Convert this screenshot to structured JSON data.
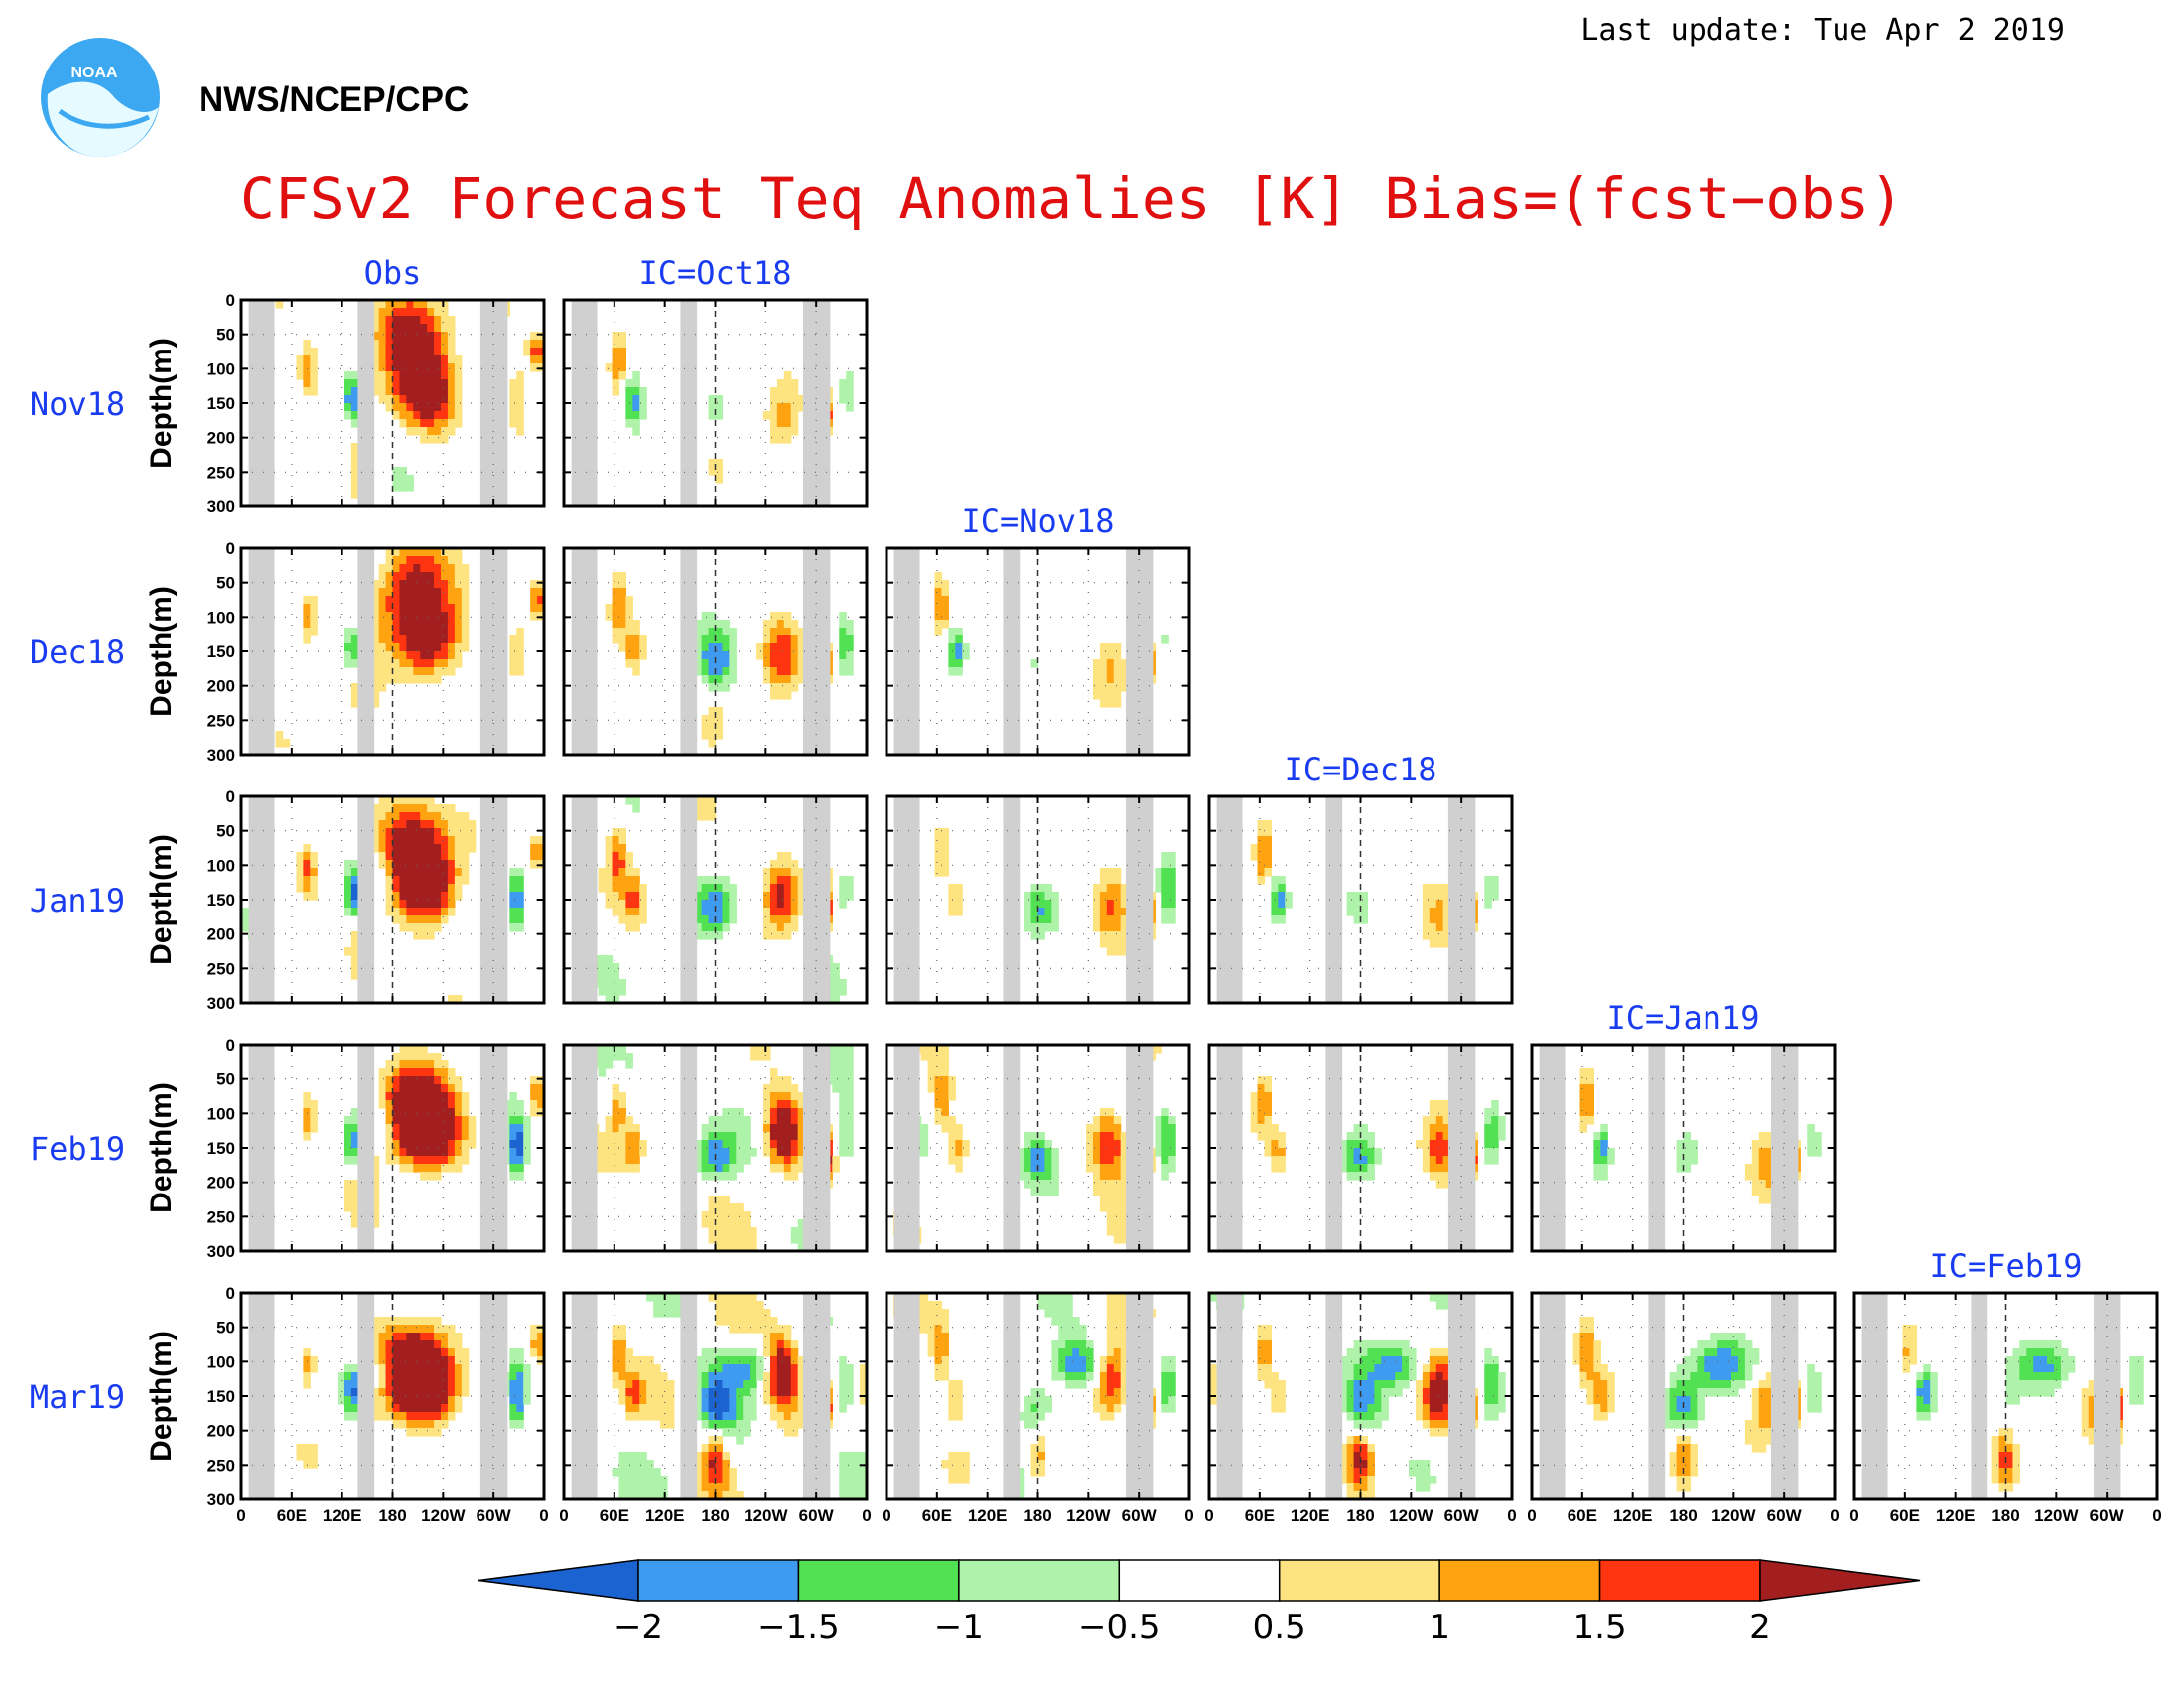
{
  "header": {
    "last_update": "Last update: Tue Apr 2 2019",
    "agency": "NWS/NCEP/CPC",
    "logo_text": "NOAA"
  },
  "chart_data": {
    "type": "heatmap",
    "title": "CFSv2 Forecast Teq Anomalies [K] Bias=(fcst−obs)",
    "ylabel": "Depth(m)",
    "y_ticks": [
      "0",
      "50",
      "100",
      "150",
      "200",
      "250",
      "300"
    ],
    "x_ticks": [
      "0",
      "60E",
      "120E",
      "180",
      "120W",
      "60W",
      "0"
    ],
    "columns": [
      "Obs",
      "IC=Oct18",
      "IC=Nov18",
      "IC=Dec18",
      "IC=Jan19",
      "IC=Feb19"
    ],
    "rows": [
      "Nov18",
      "Dec18",
      "Jan19",
      "Feb19",
      "Mar19"
    ],
    "colorbar": {
      "ticks": [
        "−2",
        "−1.5",
        "−1",
        "−0.5",
        "0.5",
        "1",
        "1.5",
        "2"
      ],
      "colors": [
        "#1c63d2",
        "#3f9bf0",
        "#52e152",
        "#aff2aa",
        "#ffffff",
        "#fde481",
        "#ffa410",
        "#ff3512",
        "#a31f1f"
      ]
    },
    "land_color": "#d0d0d0"
  }
}
